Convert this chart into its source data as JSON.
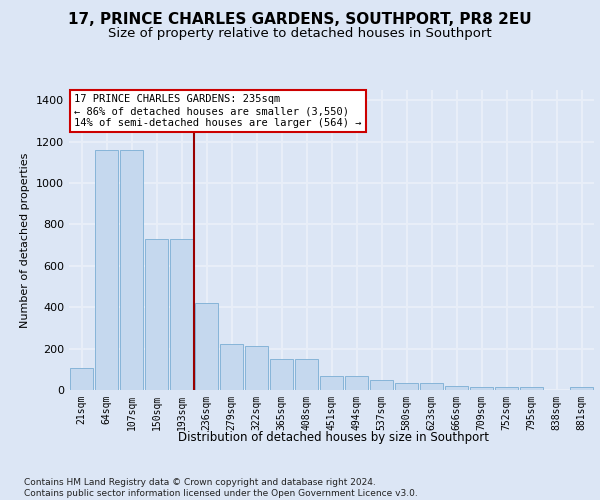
{
  "title": "17, PRINCE CHARLES GARDENS, SOUTHPORT, PR8 2EU",
  "subtitle": "Size of property relative to detached houses in Southport",
  "xlabel": "Distribution of detached houses by size in Southport",
  "ylabel": "Number of detached properties",
  "categories": [
    "21sqm",
    "64sqm",
    "107sqm",
    "150sqm",
    "193sqm",
    "236sqm",
    "279sqm",
    "322sqm",
    "365sqm",
    "408sqm",
    "451sqm",
    "494sqm",
    "537sqm",
    "580sqm",
    "623sqm",
    "666sqm",
    "709sqm",
    "752sqm",
    "795sqm",
    "838sqm",
    "881sqm"
  ],
  "values": [
    105,
    1160,
    1160,
    730,
    730,
    420,
    220,
    215,
    150,
    150,
    70,
    70,
    48,
    33,
    33,
    20,
    15,
    15,
    15,
    0,
    15
  ],
  "bar_color": "#c5d8ee",
  "bar_edge_color": "#7aadd4",
  "annotation_text": "17 PRINCE CHARLES GARDENS: 235sqm\n← 86% of detached houses are smaller (3,550)\n14% of semi-detached houses are larger (564) →",
  "annotation_box_facecolor": "white",
  "annotation_box_edgecolor": "#cc0000",
  "vline_color": "#990000",
  "vline_x": 4.5,
  "ylim": [
    0,
    1450
  ],
  "yticks": [
    0,
    200,
    400,
    600,
    800,
    1000,
    1200,
    1400
  ],
  "background_color": "#dce6f5",
  "grid_color": "#e8eef8",
  "footer": "Contains HM Land Registry data © Crown copyright and database right 2024.\nContains public sector information licensed under the Open Government Licence v3.0."
}
